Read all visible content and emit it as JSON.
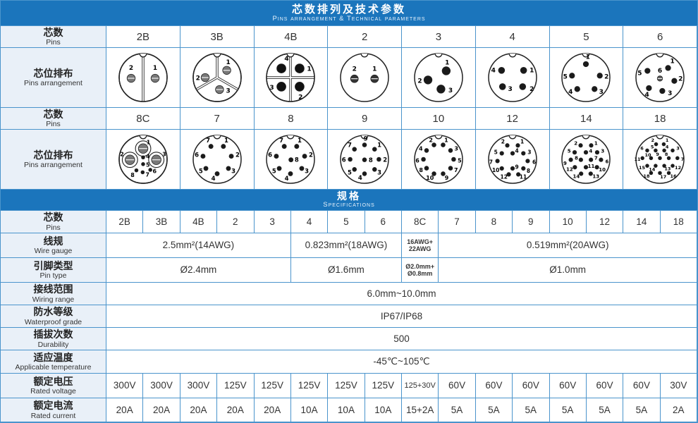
{
  "colors": {
    "header_blue": "#1b75bc",
    "cell_border": "#4a94cc",
    "label_bg": "#e9f0f8",
    "text": "#333333"
  },
  "header": {
    "title_zh": "芯数排列及技术参数",
    "title_en": "Pins arrangement & Technical parameters"
  },
  "arrangement": {
    "pins_label_zh": "芯数",
    "pins_label_en": "Pins",
    "arr_label_zh": "芯位排布",
    "arr_label_en": "Pins arrangement",
    "groups": [
      {
        "cols": [
          "2B",
          "3B",
          "4B",
          "2",
          "3",
          "4",
          "5",
          "6"
        ]
      },
      {
        "cols": [
          "8C",
          "7",
          "8",
          "9",
          "10",
          "12",
          "14",
          "18"
        ]
      }
    ]
  },
  "connectors": {
    "2B": {
      "pr": 0.17,
      "pfill": "#787878",
      "pslot": 1,
      "slots": [
        0,
        180
      ],
      "notch": 1,
      "fs": 9,
      "pins": [
        [
          "2",
          -0.5,
          0.03,
          -0.5,
          -0.38
        ],
        [
          "1",
          0.5,
          0.03,
          0.5,
          -0.38
        ]
      ]
    },
    "3B": {
      "pr": 0.17,
      "pfill": "#787878",
      "pslot": 1,
      "slots": [
        0,
        120,
        240
      ],
      "notch": 1,
      "fs": 9,
      "pins": [
        [
          "1",
          0.4,
          -0.3,
          0.46,
          -0.62
        ],
        [
          "2",
          -0.5,
          0.0,
          -0.8,
          0.04
        ],
        [
          "3",
          0.1,
          0.5,
          0.46,
          0.58
        ]
      ]
    },
    "4B": {
      "pr": 0.19,
      "pfill": "#111111",
      "slots": [
        0,
        90,
        180,
        270
      ],
      "notch": 1,
      "fs": 9,
      "pins": [
        [
          "4",
          -0.38,
          -0.38,
          -0.16,
          -0.76
        ],
        [
          "1",
          0.38,
          -0.38,
          0.78,
          -0.34
        ],
        [
          "3",
          -0.38,
          0.38,
          -0.78,
          0.44
        ],
        [
          "2",
          0.38,
          0.38,
          0.42,
          0.84
        ]
      ]
    },
    "2": {
      "pr": 0.16,
      "pfill": "#333333",
      "pslot": 1,
      "notch": 1,
      "fs": 9,
      "pins": [
        [
          "2",
          -0.42,
          0.05,
          -0.42,
          -0.34
        ],
        [
          "1",
          0.42,
          0.05,
          0.42,
          -0.34
        ]
      ]
    },
    "3": {
      "pr": 0.17,
      "pfill": "#1a1a1a",
      "notch": 1,
      "fs": 9,
      "pins": [
        [
          "1",
          0.32,
          -0.28,
          0.36,
          -0.6
        ],
        [
          "2",
          -0.44,
          0.1,
          -0.78,
          0.16
        ],
        [
          "3",
          0.1,
          0.48,
          0.5,
          0.56
        ]
      ]
    },
    "4": {
      "pr": 0.13,
      "pfill": "#1a1a1a",
      "notch": 1,
      "fs": 9,
      "pins": [
        [
          "4",
          -0.46,
          -0.3,
          -0.8,
          -0.28
        ],
        [
          "1",
          0.46,
          -0.3,
          0.8,
          -0.28
        ],
        [
          "3",
          -0.42,
          0.38,
          -0.1,
          0.5
        ],
        [
          "2",
          0.42,
          0.38,
          0.8,
          0.5
        ]
      ]
    },
    "5": {
      "pr": 0.11,
      "pfill": "#1a1a1a",
      "notch": 1,
      "fs": 9,
      "pins": [
        [
          "1",
          0.0,
          -0.56,
          0.08,
          -0.84
        ],
        [
          "2",
          0.58,
          -0.08,
          0.86,
          -0.02
        ],
        [
          "3",
          0.36,
          0.48,
          0.64,
          0.62
        ],
        [
          "4",
          -0.36,
          0.48,
          -0.64,
          0.62
        ],
        [
          "5",
          -0.58,
          -0.08,
          -0.86,
          -0.02
        ]
      ]
    },
    "6": {
      "pr": 0.11,
      "pfill": "#1a1a1a",
      "notch": 1,
      "fs": 9,
      "pins": [
        [
          "1",
          0.34,
          -0.4,
          0.52,
          -0.66
        ],
        [
          "2",
          0.6,
          0.14,
          0.86,
          0.08
        ],
        [
          "3",
          0.1,
          0.56,
          0.42,
          0.68
        ],
        [
          "4",
          -0.46,
          0.44,
          -0.54,
          0.74
        ],
        [
          "5",
          -0.52,
          -0.28,
          -0.84,
          -0.16
        ],
        [
          "6",
          0.0,
          0.04,
          0.0,
          -0.26,
          {
            "slot": 1,
            "fill": "#555555"
          }
        ]
      ]
    },
    "8C": {
      "pr": 0.07,
      "pfill": "#1a1a1a",
      "notch": 1,
      "fs": 8,
      "big": {
        "r": 0.2,
        "fill": "#787878",
        "slot": 1
      },
      "pockets": [
        [
          0,
          -0.45
        ],
        [
          -0.55,
          0.02
        ],
        [
          0.55,
          0.02
        ]
      ],
      "pins": [
        [
          "1",
          0.0,
          -0.45,
          0.22,
          -0.7,
          {
            "big": 1
          }
        ],
        [
          "2",
          -0.55,
          0.02,
          -0.88,
          -0.2,
          {
            "big": 1
          }
        ],
        [
          "3",
          0.55,
          0.02,
          0.88,
          -0.2,
          {
            "big": 1
          }
        ],
        [
          "4",
          0.0,
          -0.08,
          0.2,
          -0.12
        ],
        [
          "5",
          0.0,
          0.2,
          0.2,
          0.24
        ],
        [
          "8",
          -0.28,
          0.46,
          -0.44,
          0.66
        ],
        [
          "7",
          -0.02,
          0.54,
          0.18,
          0.64
        ],
        [
          "6",
          0.3,
          0.44,
          0.48,
          0.5
        ]
      ]
    },
    "7": {
      "pr": 0.09,
      "pfill": "#1a1a1a",
      "notch": 1,
      "fs": 8.5,
      "pins": [
        [
          "1",
          0.26,
          -0.54,
          0.38,
          -0.76
        ],
        [
          "2",
          0.59,
          -0.13,
          0.85,
          -0.16
        ],
        [
          "3",
          0.47,
          0.38,
          0.68,
          0.52
        ],
        [
          "4",
          0.0,
          0.6,
          -0.16,
          0.82
        ],
        [
          "5",
          -0.47,
          0.38,
          -0.68,
          0.52
        ],
        [
          "6",
          -0.59,
          -0.13,
          -0.85,
          -0.16
        ],
        [
          "7",
          -0.26,
          -0.54,
          -0.38,
          -0.76
        ]
      ]
    },
    "8": {
      "pr": 0.09,
      "pfill": "#1a1a1a",
      "notch": 1,
      "fs": 8.5,
      "pins": [
        [
          "1",
          0.26,
          -0.54,
          0.38,
          -0.76
        ],
        [
          "2",
          0.59,
          -0.13,
          0.85,
          -0.16
        ],
        [
          "3",
          0.47,
          0.38,
          0.68,
          0.52
        ],
        [
          "4",
          0.0,
          0.6,
          -0.16,
          0.82
        ],
        [
          "5",
          -0.47,
          0.38,
          -0.68,
          0.52
        ],
        [
          "6",
          -0.59,
          -0.13,
          -0.85,
          -0.16
        ],
        [
          "7",
          -0.26,
          -0.54,
          -0.38,
          -0.76
        ],
        [
          "8",
          0.02,
          0.02,
          0.26,
          0.05
        ]
      ]
    },
    "9": {
      "pr": 0.085,
      "pfill": "#1a1a1a",
      "notch": 1,
      "fs": 8.5,
      "pins": [
        [
          "9",
          0.0,
          -0.6,
          0.05,
          -0.84
        ],
        [
          "1",
          0.42,
          -0.42,
          0.62,
          -0.58
        ],
        [
          "2",
          0.6,
          0.0,
          0.86,
          0.04
        ],
        [
          "3",
          0.42,
          0.42,
          0.62,
          0.58
        ],
        [
          "4",
          0.0,
          0.6,
          -0.18,
          0.8
        ],
        [
          "5",
          -0.42,
          0.42,
          -0.62,
          0.58
        ],
        [
          "6",
          -0.6,
          0.0,
          -0.86,
          0.04
        ],
        [
          "7",
          -0.42,
          -0.42,
          -0.62,
          -0.58
        ],
        [
          "8",
          0.0,
          0.02,
          0.26,
          0.06
        ]
      ]
    },
    "10": {
      "pr": 0.085,
      "pfill": "#1a1a1a",
      "notch": 1,
      "fs": 8,
      "pins": [
        [
          "2",
          -0.19,
          -0.6,
          -0.32,
          -0.8
        ],
        [
          "1",
          0.19,
          -0.6,
          0.32,
          -0.8
        ],
        [
          "4",
          -0.5,
          -0.37,
          -0.74,
          -0.44
        ],
        [
          "3",
          0.5,
          -0.37,
          0.74,
          -0.44
        ],
        [
          "6",
          -0.63,
          0.0,
          -0.88,
          0.06
        ],
        [
          "5",
          0.63,
          0.0,
          0.88,
          0.06
        ],
        [
          "8",
          -0.5,
          0.37,
          -0.73,
          0.46
        ],
        [
          "7",
          0.5,
          0.37,
          0.73,
          0.46
        ],
        [
          "10",
          -0.19,
          0.6,
          -0.36,
          0.78
        ],
        [
          "9",
          0.19,
          0.6,
          0.34,
          0.78
        ]
      ]
    },
    "12": {
      "pr": 0.08,
      "pfill": "#1a1a1a",
      "notch": 1,
      "fs": 7.5,
      "pins": [
        [
          "2",
          -0.22,
          -0.58,
          -0.4,
          -0.74
        ],
        [
          "1",
          0.22,
          -0.58,
          0.4,
          -0.74
        ],
        [
          "5",
          -0.45,
          -0.25,
          -0.7,
          -0.3
        ],
        [
          "4",
          0.0,
          -0.25,
          0.18,
          -0.36
        ],
        [
          "3",
          0.45,
          -0.25,
          0.7,
          -0.3
        ],
        [
          "7",
          -0.63,
          0.07,
          -0.9,
          0.12
        ],
        [
          "6",
          0.63,
          0.07,
          0.9,
          0.12
        ],
        [
          "10",
          -0.45,
          0.38,
          -0.7,
          0.46
        ],
        [
          "9",
          0.0,
          0.38,
          0.18,
          0.32
        ],
        [
          "8",
          0.45,
          0.38,
          0.66,
          0.48
        ],
        [
          "12",
          -0.16,
          0.63,
          -0.36,
          0.74
        ],
        [
          "11",
          0.24,
          0.63,
          0.44,
          0.74
        ]
      ]
    },
    "14": {
      "pr": 0.08,
      "pfill": "#1a1a1a",
      "notch": 1,
      "fs": 7,
      "pins": [
        [
          "2",
          -0.22,
          -0.58,
          -0.42,
          -0.66
        ],
        [
          "1",
          0.22,
          -0.58,
          0.42,
          -0.66
        ],
        [
          "5",
          -0.47,
          -0.29,
          -0.7,
          -0.34
        ],
        [
          "4",
          0.0,
          -0.29,
          0.2,
          -0.34
        ],
        [
          "3",
          0.47,
          -0.29,
          0.7,
          -0.34
        ],
        [
          "9",
          -0.63,
          0.02,
          -0.87,
          0.18
        ],
        [
          "8",
          -0.21,
          0.02,
          -0.4,
          -0.04
        ],
        [
          "7",
          0.21,
          0.02,
          0.42,
          -0.04
        ],
        [
          "6",
          0.63,
          0.02,
          0.88,
          0.1
        ],
        [
          "12",
          -0.46,
          0.33,
          -0.68,
          0.42
        ],
        [
          "11",
          0.0,
          0.33,
          0.22,
          0.3
        ],
        [
          "10",
          0.46,
          0.33,
          0.68,
          0.44
        ],
        [
          "14",
          -0.2,
          0.6,
          -0.4,
          0.72
        ],
        [
          "13",
          0.2,
          0.6,
          0.42,
          0.72
        ]
      ]
    },
    "18": {
      "pr": 0.07,
      "pfill": "#1a1a1a",
      "notch": 1,
      "fs": 6.5,
      "pins": [
        [
          "2",
          -0.16,
          -0.63,
          -0.3,
          -0.8
        ],
        [
          "1",
          0.16,
          -0.63,
          0.3,
          -0.8
        ],
        [
          "6",
          -0.53,
          -0.37,
          -0.75,
          -0.45
        ],
        [
          "5",
          -0.18,
          -0.37,
          -0.32,
          -0.52
        ],
        [
          "4",
          0.18,
          -0.37,
          0.3,
          -0.52
        ],
        [
          "3",
          0.53,
          -0.37,
          0.75,
          -0.45
        ],
        [
          "11",
          -0.73,
          -0.05,
          -0.94,
          0.0
        ],
        [
          "10",
          -0.37,
          -0.05,
          -0.5,
          -0.18
        ],
        [
          "9",
          0.0,
          -0.05,
          -0.1,
          -0.2
        ],
        [
          "8",
          0.37,
          -0.05,
          0.27,
          -0.2
        ],
        [
          "7",
          0.73,
          -0.05,
          0.94,
          0.0
        ],
        [
          "15",
          -0.53,
          0.27,
          -0.75,
          0.36
        ],
        [
          "14",
          -0.18,
          0.27,
          -0.33,
          0.42
        ],
        [
          "13",
          0.18,
          0.27,
          0.32,
          0.4
        ],
        [
          "12",
          0.53,
          0.27,
          0.75,
          0.36
        ],
        [
          "18",
          -0.37,
          0.57,
          -0.56,
          0.7
        ],
        [
          "17",
          0.0,
          0.57,
          0.14,
          0.74
        ],
        [
          "16",
          0.37,
          0.57,
          0.56,
          0.7
        ]
      ]
    }
  },
  "specs": {
    "bar_zh": "规格",
    "bar_en": "Specifications",
    "pins_label_zh": "芯数",
    "pins_label_en": "Pins",
    "pins_row": [
      "2B",
      "3B",
      "4B",
      "2",
      "3",
      "4",
      "5",
      "6",
      "8C",
      "7",
      "8",
      "9",
      "10",
      "12",
      "14",
      "18"
    ],
    "rows": [
      {
        "zh": "线规",
        "en": "Wire gauge",
        "cells": [
          {
            "t": "2.5mm²(14AWG)",
            "span": 5
          },
          {
            "t": "0.823mm²(18AWG)",
            "span": 3
          },
          {
            "t": "16AWG+\n22AWG",
            "span": 1,
            "small": 1
          },
          {
            "t": "0.519mm²(20AWG)",
            "span": 7
          }
        ]
      },
      {
        "zh": "引脚类型",
        "en": "Pin type",
        "cells": [
          {
            "t": "Ø2.4mm",
            "span": 5
          },
          {
            "t": "Ø1.6mm",
            "span": 3
          },
          {
            "t": "Ø2.0mm+\nØ0.8mm",
            "span": 1,
            "small": 1
          },
          {
            "t": "Ø1.0mm",
            "span": 7
          }
        ]
      },
      {
        "zh": "接线范围",
        "en": "Wiring range",
        "cells": [
          {
            "t": "6.0mm~10.0mm",
            "span": 16
          }
        ]
      },
      {
        "zh": "防水等级",
        "en": "Waterproof grade",
        "cells": [
          {
            "t": "IP67/IP68",
            "span": 16
          }
        ]
      },
      {
        "zh": "插拔次数",
        "en": "Durability",
        "cells": [
          {
            "t": "500",
            "span": 16
          }
        ]
      },
      {
        "zh": "适应温度",
        "en": "Applicable temperature",
        "cells": [
          {
            "t": "-45℃~105℃",
            "span": 16
          }
        ]
      },
      {
        "zh": "额定电压",
        "en": "Rated voltage",
        "cells": [
          {
            "t": "300V"
          },
          {
            "t": "300V"
          },
          {
            "t": "300V"
          },
          {
            "t": "125V"
          },
          {
            "t": "125V"
          },
          {
            "t": "125V"
          },
          {
            "t": "125V"
          },
          {
            "t": "125V"
          },
          {
            "t": "125+30V",
            "tight": 1
          },
          {
            "t": "60V"
          },
          {
            "t": "60V"
          },
          {
            "t": "60V"
          },
          {
            "t": "60V"
          },
          {
            "t": "60V"
          },
          {
            "t": "60V"
          },
          {
            "t": "30V"
          }
        ]
      },
      {
        "zh": "额定电流",
        "en": "Rated current",
        "cells": [
          {
            "t": "20A"
          },
          {
            "t": "20A"
          },
          {
            "t": "20A"
          },
          {
            "t": "20A"
          },
          {
            "t": "20A"
          },
          {
            "t": "10A"
          },
          {
            "t": "10A"
          },
          {
            "t": "10A"
          },
          {
            "t": "15+2A"
          },
          {
            "t": "5A"
          },
          {
            "t": "5A"
          },
          {
            "t": "5A"
          },
          {
            "t": "5A"
          },
          {
            "t": "5A"
          },
          {
            "t": "5A"
          },
          {
            "t": "2A"
          }
        ]
      }
    ]
  }
}
